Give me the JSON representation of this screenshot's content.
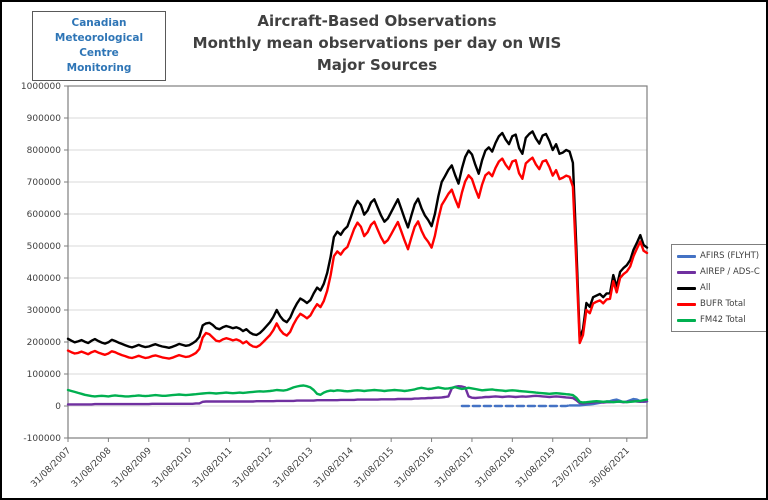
{
  "logo": {
    "line1": "Canadian",
    "line2": "Meteorological Centre",
    "line3": "Monitoring"
  },
  "title": {
    "line1": "Aircraft-Based Observations",
    "line2": "Monthly mean observations per day on WIS",
    "line3": "Major Sources"
  },
  "chart_data": {
    "type": "line",
    "title": "Aircraft-Based Observations — Monthly mean observations per day on WIS — Major Sources",
    "xlabel": "",
    "ylabel": "",
    "x_unit": "month",
    "x_start": "2007-08",
    "x_count": 173,
    "ylim": [
      -100000,
      1000000
    ],
    "y_tick_step": 100000,
    "grid": true,
    "legend_position": "right",
    "x_ticks": [
      {
        "label": "31/08/2007",
        "m": 0
      },
      {
        "label": "31/08/2008",
        "m": 12
      },
      {
        "label": "31/08/2009",
        "m": 24
      },
      {
        "label": "31/08/2010",
        "m": 36
      },
      {
        "label": "31/08/2011",
        "m": 48
      },
      {
        "label": "31/08/2012",
        "m": 60
      },
      {
        "label": "31/08/2013",
        "m": 72
      },
      {
        "label": "31/08/2014",
        "m": 84
      },
      {
        "label": "31/08/2015",
        "m": 96
      },
      {
        "label": "31/08/2016",
        "m": 108
      },
      {
        "label": "31/08/2017",
        "m": 120
      },
      {
        "label": "31/08/2018",
        "m": 132
      },
      {
        "label": "31/08/2019",
        "m": 144
      },
      {
        "label": "23/07/2020",
        "m": 155
      },
      {
        "label": "30/06/2021",
        "m": 166
      }
    ],
    "series": [
      {
        "name": "AFIRS (FLYHT)",
        "color": "#4472C4",
        "start_index": 117,
        "solid_from_index": 149,
        "values": [
          0,
          0,
          0,
          0,
          0,
          0,
          0,
          0,
          0,
          0,
          0,
          0,
          0,
          0,
          0,
          0,
          0,
          0,
          0,
          0,
          0,
          0,
          0,
          0,
          0,
          0,
          0,
          0,
          0,
          0,
          0,
          0,
          2000,
          2000,
          2000,
          2000,
          3000,
          4000,
          5000,
          6000,
          8000,
          10000,
          12000,
          14000,
          15000,
          18000,
          20000,
          16000,
          12000,
          14000,
          18000,
          22000,
          20000,
          15000,
          13000,
          14000
        ]
      },
      {
        "name": "AIREP / ADS-C",
        "color": "#7030A0",
        "start_index": 0,
        "values": [
          5000,
          5000,
          5000,
          5000,
          5000,
          5000,
          5000,
          5000,
          6000,
          6000,
          6000,
          6000,
          6000,
          6000,
          6000,
          6000,
          6000,
          6000,
          6000,
          6000,
          6000,
          6000,
          6000,
          6000,
          6000,
          7000,
          7000,
          7000,
          7000,
          7000,
          7000,
          7000,
          7000,
          7000,
          7000,
          7000,
          7000,
          7000,
          8000,
          8000,
          13000,
          14000,
          14000,
          14000,
          14000,
          14000,
          14000,
          14000,
          14000,
          14000,
          14000,
          14000,
          14000,
          14000,
          14000,
          14000,
          15000,
          15000,
          15000,
          15000,
          15000,
          15000,
          16000,
          16000,
          16000,
          16000,
          16000,
          16000,
          17000,
          17000,
          17000,
          17000,
          17000,
          17000,
          18000,
          18000,
          18000,
          18000,
          18000,
          18000,
          18000,
          19000,
          19000,
          19000,
          19000,
          19000,
          20000,
          20000,
          20000,
          20000,
          20000,
          20000,
          20000,
          21000,
          21000,
          21000,
          21000,
          21000,
          22000,
          22000,
          22000,
          22000,
          22000,
          23000,
          23000,
          24000,
          24000,
          25000,
          25000,
          26000,
          26000,
          27000,
          28000,
          30000,
          55000,
          60000,
          62000,
          61000,
          58000,
          30000,
          26000,
          25000,
          26000,
          27000,
          28000,
          28000,
          29000,
          30000,
          29000,
          28000,
          29000,
          30000,
          29000,
          28000,
          29000,
          30000,
          29000,
          30000,
          31000,
          32000,
          31000,
          30000,
          29000,
          28000,
          29000,
          30000,
          29000,
          28000,
          27000,
          26000,
          25000,
          18000,
          9000,
          8000,
          9000,
          10000,
          11000,
          12000,
          12000,
          11000,
          12000,
          12000,
          13000,
          14000,
          13000,
          12000,
          13000,
          14000,
          15000,
          14000,
          13000,
          14000,
          15000
        ]
      },
      {
        "name": "All",
        "color": "#000000",
        "start_index": 0,
        "values": [
          210000,
          204000,
          199000,
          202000,
          206000,
          201000,
          197000,
          204000,
          209000,
          203000,
          198000,
          195000,
          199000,
          207000,
          203000,
          198000,
          194000,
          190000,
          186000,
          183000,
          187000,
          191000,
          187000,
          184000,
          186000,
          190000,
          193000,
          189000,
          186000,
          184000,
          182000,
          185000,
          189000,
          194000,
          191000,
          188000,
          190000,
          196000,
          203000,
          216000,
          252000,
          258000,
          260000,
          253000,
          243000,
          240000,
          246000,
          250000,
          247000,
          243000,
          246000,
          242000,
          234000,
          240000,
          230000,
          224000,
          222000,
          228000,
          238000,
          250000,
          262000,
          278000,
          300000,
          281000,
          268000,
          262000,
          276000,
          300000,
          320000,
          336000,
          330000,
          322000,
          331000,
          352000,
          370000,
          361000,
          382000,
          416000,
          466000,
          528000,
          545000,
          535000,
          551000,
          561000,
          590000,
          620000,
          641000,
          628000,
          598000,
          611000,
          636000,
          646000,
          620000,
          595000,
          576000,
          586000,
          606000,
          626000,
          646000,
          616000,
          586000,
          558000,
          596000,
          630000,
          648000,
          618000,
          596000,
          581000,
          562000,
          600000,
          655000,
          700000,
          718000,
          738000,
          752000,
          722000,
          695000,
          742000,
          778000,
          798000,
          786000,
          754000,
          726000,
          768000,
          798000,
          808000,
          795000,
          822000,
          843000,
          853000,
          833000,
          818000,
          843000,
          848000,
          806000,
          788000,
          838000,
          850000,
          858000,
          836000,
          820000,
          845000,
          850000,
          828000,
          800000,
          818000,
          788000,
          792000,
          800000,
          795000,
          760000,
          500000,
          213000,
          240000,
          322000,
          310000,
          340000,
          345000,
          350000,
          340000,
          352000,
          352000,
          409000,
          372000,
          419000,
          431000,
          440000,
          456000,
          488000,
          510000,
          534000,
          503000,
          495000
        ]
      },
      {
        "name": "BUFR Total",
        "color": "#FF0000",
        "start_index": 0,
        "values": [
          173000,
          168000,
          164000,
          166000,
          170000,
          166000,
          162000,
          168000,
          172000,
          167000,
          163000,
          160000,
          164000,
          171000,
          168000,
          163000,
          159000,
          156000,
          152000,
          150000,
          153000,
          157000,
          153000,
          150000,
          152000,
          156000,
          158000,
          155000,
          152000,
          150000,
          148000,
          151000,
          155000,
          159000,
          156000,
          153000,
          155000,
          160000,
          166000,
          178000,
          214000,
          228000,
          224000,
          214000,
          204000,
          202000,
          208000,
          212000,
          209000,
          205000,
          208000,
          204000,
          196000,
          202000,
          192000,
          186000,
          184000,
          190000,
          200000,
          211000,
          222000,
          237000,
          258000,
          238000,
          226000,
          220000,
          232000,
          255000,
          274000,
          288000,
          282000,
          274000,
          283000,
          302000,
          318000,
          309000,
          328000,
          360000,
          408000,
          468000,
          483000,
          473000,
          488000,
          497000,
          525000,
          553000,
          573000,
          560000,
          531000,
          543000,
          566000,
          576000,
          551000,
          527000,
          509000,
          518000,
          537000,
          556000,
          575000,
          546000,
          517000,
          490000,
          527000,
          560000,
          577000,
          548000,
          527000,
          513000,
          495000,
          532000,
          585000,
          628000,
          645000,
          663000,
          676000,
          647000,
          621000,
          667000,
          702000,
          721000,
          709000,
          678000,
          651000,
          692000,
          721000,
          730000,
          718000,
          744000,
          764000,
          773000,
          754000,
          740000,
          764000,
          768000,
          727000,
          710000,
          758000,
          768000,
          776000,
          755000,
          740000,
          764000,
          768000,
          747000,
          720000,
          737000,
          709000,
          713000,
          720000,
          716000,
          685000,
          450000,
          197000,
          222000,
          300000,
          290000,
          320000,
          326000,
          330000,
          321000,
          333000,
          335000,
          390000,
          355000,
          400000,
          412000,
          420000,
          436000,
          468000,
          492000,
          514000,
          485000,
          478000
        ]
      },
      {
        "name": "FM42 Total",
        "color": "#00B050",
        "start_index": 0,
        "values": [
          50000,
          47000,
          44000,
          41000,
          38000,
          35000,
          33000,
          31000,
          30000,
          31000,
          32000,
          31000,
          30000,
          32000,
          33000,
          32000,
          31000,
          30000,
          30000,
          31000,
          32000,
          33000,
          32000,
          31000,
          32000,
          33000,
          34000,
          33000,
          32000,
          32000,
          33000,
          34000,
          35000,
          36000,
          35000,
          34000,
          35000,
          36000,
          37000,
          38000,
          39000,
          40000,
          41000,
          40000,
          39000,
          40000,
          41000,
          42000,
          41000,
          40000,
          41000,
          42000,
          41000,
          42000,
          43000,
          44000,
          45000,
          46000,
          45000,
          46000,
          47000,
          48000,
          50000,
          49000,
          48000,
          50000,
          54000,
          58000,
          61000,
          63000,
          64000,
          62000,
          58000,
          50000,
          38000,
          35000,
          42000,
          46000,
          48000,
          47000,
          49000,
          48000,
          47000,
          46000,
          47000,
          48000,
          49000,
          48000,
          47000,
          48000,
          49000,
          50000,
          49000,
          48000,
          47000,
          48000,
          49000,
          50000,
          49000,
          48000,
          47000,
          48000,
          50000,
          52000,
          55000,
          57000,
          55000,
          53000,
          54000,
          56000,
          58000,
          56000,
          54000,
          55000,
          57000,
          59000,
          56000,
          53000,
          55000,
          57000,
          55000,
          53000,
          51000,
          49000,
          50000,
          51000,
          52000,
          50000,
          49000,
          48000,
          47000,
          48000,
          49000,
          48000,
          47000,
          46000,
          45000,
          44000,
          43000,
          42000,
          41000,
          40000,
          39000,
          38000,
          39000,
          40000,
          39000,
          38000,
          37000,
          36000,
          34000,
          26000,
          13000,
          11000,
          12000,
          13000,
          14000,
          15000,
          14000,
          13000,
          14000,
          13000,
          12000,
          13000,
          14000,
          13000,
          12000,
          13000,
          14000,
          15000,
          16000,
          18000,
          20000
        ]
      }
    ]
  },
  "style_colors": {
    "grid": "#D9D9D9",
    "plot_border": "#7F7F7F",
    "axis_text": "#404040",
    "title_text": "#404040",
    "logo_text": "#2E75B6"
  }
}
